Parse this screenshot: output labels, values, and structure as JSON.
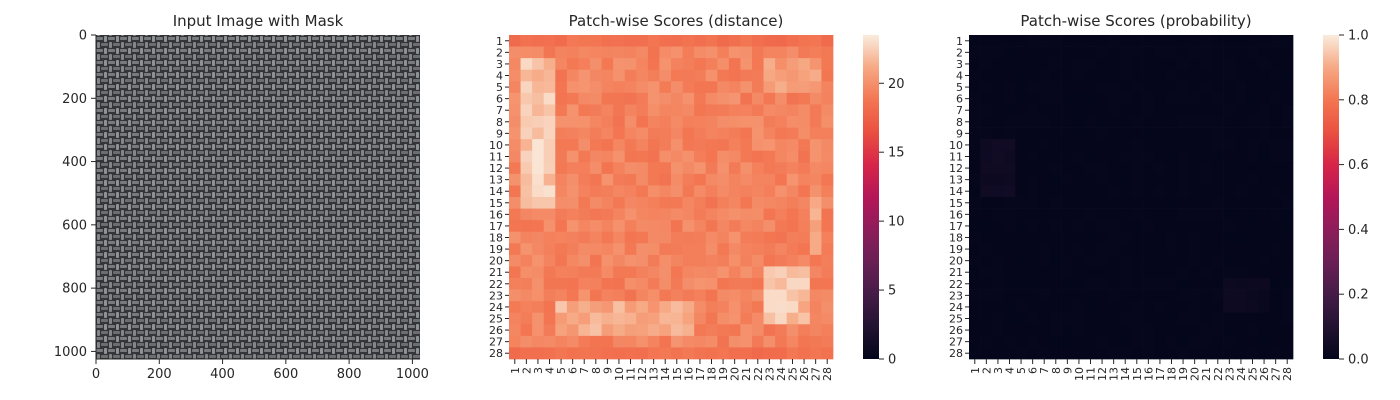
{
  "chart_data": [
    {
      "type": "image",
      "title": "Input Image with Mask",
      "xlabel": "",
      "ylabel": "",
      "xlim": [
        0,
        1024
      ],
      "ylim": [
        1024,
        0
      ],
      "xticks": [
        0,
        200,
        400,
        600,
        800,
        1000
      ],
      "yticks": [
        0,
        200,
        400,
        600,
        800,
        1000
      ],
      "content": "woven gray fabric texture",
      "colors": {
        "base": "#5c5d60",
        "dark": "#2f3033",
        "light": "#b7babc"
      }
    },
    {
      "type": "heatmap",
      "title": "Patch-wise Scores (distance)",
      "rows": 28,
      "cols": 28,
      "xticklabels": [
        "1",
        "2",
        "3",
        "4",
        "5",
        "6",
        "7",
        "8",
        "9",
        "10",
        "11",
        "12",
        "13",
        "14",
        "15",
        "16",
        "17",
        "18",
        "19",
        "20",
        "21",
        "22",
        "23",
        "24",
        "25",
        "26",
        "27",
        "28"
      ],
      "yticklabels": [
        "1",
        "2",
        "3",
        "4",
        "5",
        "6",
        "7",
        "8",
        "9",
        "10",
        "11",
        "12",
        "13",
        "14",
        "15",
        "16",
        "17",
        "18",
        "19",
        "20",
        "21",
        "22",
        "23",
        "24",
        "25",
        "26",
        "27",
        "28"
      ],
      "colorbar": {
        "min": 0,
        "max": 23.5,
        "ticks": [
          0,
          5,
          10,
          15,
          20
        ]
      },
      "value_range": [
        17,
        23.5
      ],
      "high_regions": "left edge (cols 2-4, rows 3-15), bottom band (rows 24-26, cols 5-16), lower-right cluster (rows 21-25, cols 23-26), right edge (rows 15-19, col 27)",
      "colormap": "rocket"
    },
    {
      "type": "heatmap",
      "title": "Patch-wise Scores (probability)",
      "rows": 28,
      "cols": 28,
      "xticklabels": [
        "1",
        "2",
        "3",
        "4",
        "5",
        "6",
        "7",
        "8",
        "9",
        "10",
        "11",
        "12",
        "13",
        "14",
        "15",
        "16",
        "17",
        "18",
        "19",
        "20",
        "21",
        "22",
        "23",
        "24",
        "25",
        "26",
        "27",
        "28"
      ],
      "yticklabels": [
        "1",
        "2",
        "3",
        "4",
        "5",
        "6",
        "7",
        "8",
        "9",
        "10",
        "11",
        "12",
        "13",
        "14",
        "15",
        "16",
        "17",
        "18",
        "19",
        "20",
        "21",
        "22",
        "23",
        "24",
        "25",
        "26",
        "27",
        "28"
      ],
      "colorbar": {
        "min": 0.0,
        "max": 1.0,
        "ticks": [
          "0.0",
          "0.2",
          "0.4",
          "0.6",
          "0.8",
          "1.0"
        ]
      },
      "value_range": [
        0.0,
        0.05
      ],
      "high_regions": "faint near-zero values around cols 2-4, rows 10-14 and cols 23-26, rows 22-24",
      "colormap": "rocket"
    }
  ]
}
